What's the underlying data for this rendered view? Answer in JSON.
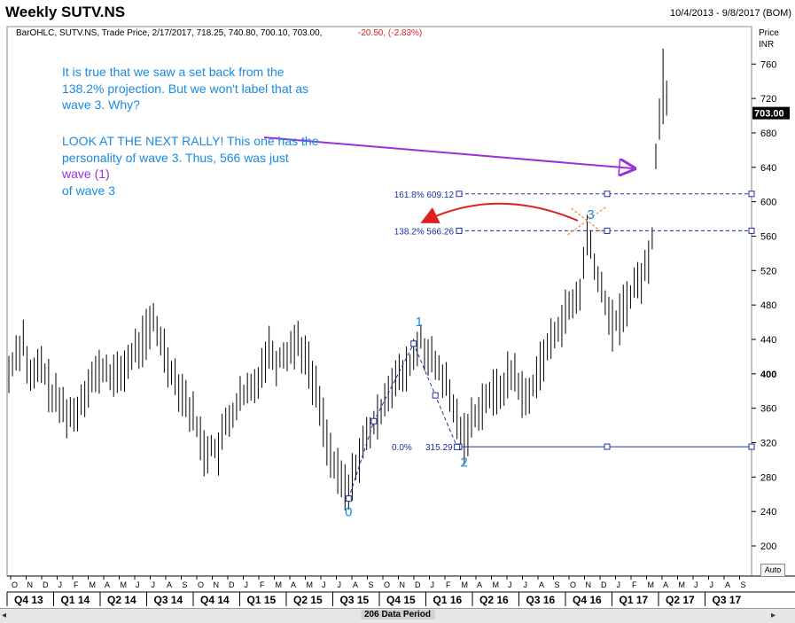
{
  "header": {
    "title": "Weekly SUTV.NS",
    "date_range": "10/4/2013 - 9/8/2017 (BOM)",
    "legend": "BarOHLC, SUTV.NS, Trade Price, 2/17/2017, 718.25, 740.80, 700.10, 703.00,",
    "legend_change": "-20.50, (-2.83%)"
  },
  "axis": {
    "price_label": "Price",
    "currency_label": "INR",
    "current_price": "703.00",
    "auto_label": "Auto",
    "scroll_label": "206 Data Period",
    "scroll_left": "◂",
    "scroll_right": "▸"
  },
  "annotations": {
    "block1": "It is true that we saw a set back from the 138.2% projection. But we won't label that as wave 3. Why?",
    "block2_part1": "LOOK AT THE NEXT RALLY! This one has the personality of wave 3. Thus, 566 was just ",
    "block2_wave": "wave (1)",
    "block2_part2": "of wave 3"
  },
  "chart_data": {
    "type": "bar",
    "title": "Weekly SUTV.NS",
    "ylabel": "Price INR",
    "ylim": [
      165,
      785
    ],
    "yticks": [
      200,
      240,
      280,
      320,
      360,
      400,
      440,
      480,
      520,
      560,
      600,
      640,
      680,
      720,
      760
    ],
    "bold_ytick": 400,
    "month_ticks": [
      "O",
      "N",
      "D",
      "J",
      "F",
      "M",
      "A",
      "M",
      "J",
      "J",
      "A",
      "S",
      "O",
      "N",
      "D",
      "J",
      "F",
      "M",
      "A",
      "M",
      "J",
      "J",
      "A",
      "S",
      "O",
      "N",
      "D",
      "J",
      "F",
      "M",
      "A",
      "M",
      "J",
      "J",
      "A",
      "S",
      "O",
      "N",
      "D",
      "J",
      "F",
      "M",
      "A",
      "M",
      "J",
      "J",
      "A",
      "S"
    ],
    "quarter_ticks": [
      "Q4 13",
      "Q1 14",
      "Q2 14",
      "Q3 14",
      "Q4 14",
      "Q1 15",
      "Q2 15",
      "Q3 15",
      "Q4 15",
      "Q1 16",
      "Q2 16",
      "Q3 16",
      "Q4 16",
      "Q1 17",
      "Q2 17",
      "Q3 17"
    ],
    "anchors": [
      [
        0,
        400
      ],
      [
        2,
        425
      ],
      [
        4,
        440
      ],
      [
        6,
        392
      ],
      [
        9,
        410
      ],
      [
        12,
        375
      ],
      [
        15,
        360
      ],
      [
        18,
        350
      ],
      [
        22,
        390
      ],
      [
        26,
        405
      ],
      [
        30,
        395
      ],
      [
        34,
        420
      ],
      [
        38,
        445
      ],
      [
        40,
        460
      ],
      [
        42,
        440
      ],
      [
        44,
        415
      ],
      [
        46,
        395
      ],
      [
        48,
        380
      ],
      [
        50,
        360
      ],
      [
        52,
        340
      ],
      [
        54,
        310
      ],
      [
        56,
        315
      ],
      [
        58,
        310
      ],
      [
        60,
        340
      ],
      [
        64,
        370
      ],
      [
        68,
        385
      ],
      [
        70,
        410
      ],
      [
        72,
        430
      ],
      [
        74,
        415
      ],
      [
        78,
        430
      ],
      [
        80,
        440
      ],
      [
        82,
        420
      ],
      [
        84,
        395
      ],
      [
        86,
        365
      ],
      [
        88,
        325
      ],
      [
        90,
        290
      ],
      [
        92,
        275
      ],
      [
        94,
        262
      ],
      [
        96,
        295
      ],
      [
        98,
        315
      ],
      [
        100,
        335
      ],
      [
        102,
        345
      ],
      [
        104,
        375
      ],
      [
        106,
        390
      ],
      [
        108,
        395
      ],
      [
        110,
        402
      ],
      [
        112,
        420
      ],
      [
        114,
        440
      ],
      [
        116,
        420
      ],
      [
        118,
        408
      ],
      [
        120,
        398
      ],
      [
        122,
        372
      ],
      [
        124,
        345
      ],
      [
        126,
        325
      ],
      [
        128,
        345
      ],
      [
        130,
        360
      ],
      [
        132,
        372
      ],
      [
        134,
        375
      ],
      [
        136,
        382
      ],
      [
        138,
        395
      ],
      [
        140,
        402
      ],
      [
        142,
        375
      ],
      [
        144,
        372
      ],
      [
        146,
        402
      ],
      [
        148,
        420
      ],
      [
        150,
        435
      ],
      [
        152,
        455
      ],
      [
        154,
        470
      ],
      [
        156,
        478
      ],
      [
        158,
        495
      ],
      [
        159,
        525
      ],
      [
        160,
        562
      ],
      [
        162,
        530
      ],
      [
        163,
        505
      ],
      [
        165,
        485
      ],
      [
        167,
        455
      ],
      [
        169,
        465
      ],
      [
        171,
        485
      ],
      [
        173,
        500
      ],
      [
        175,
        512
      ],
      [
        177,
        530
      ],
      [
        178,
        560
      ],
      [
        179,
        655
      ],
      [
        180,
        695
      ],
      [
        181,
        750
      ],
      [
        182,
        703
      ]
    ],
    "fibonacci": [
      {
        "label": "161.8% 609.12",
        "value": 609.12
      },
      {
        "label": "138.2% 566.26",
        "value": 566.26
      },
      {
        "label": "0.0%",
        "value": 315.29,
        "price_label": "315.29"
      }
    ],
    "wave_points": [
      {
        "label": "0",
        "x": 94,
        "value": 255
      },
      {
        "label": "1",
        "x": 112,
        "value": 435
      },
      {
        "label": "2",
        "x": 124,
        "value": 315
      },
      {
        "label": "3",
        "x": 160,
        "value": 578
      }
    ]
  },
  "colors": {
    "fib": "#1d2f9e",
    "wave": "#1a8ae0",
    "arrow_red": "#e02020",
    "arrow_purple": "#9b30d9",
    "mark_orange": "#f0a060"
  }
}
